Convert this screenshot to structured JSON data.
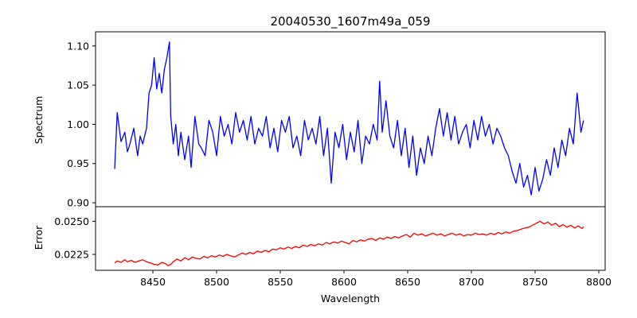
{
  "chart_data": [
    {
      "type": "line",
      "title": "20040530_1607m49a_059",
      "xlabel": "",
      "ylabel": "Spectrum",
      "xlim": [
        8405,
        8805
      ],
      "ylim": [
        0.895,
        1.118
      ],
      "yticks": [
        "0.90",
        "0.95",
        "1.00",
        "1.05",
        "1.10"
      ],
      "xticks_visible": false,
      "series": [
        {
          "color": "#0000ff",
          "x": [
            8420,
            8422,
            8425,
            8428,
            8430,
            8432,
            8435,
            8438,
            8440,
            8442,
            8445,
            8447,
            8449,
            8451,
            8453,
            8455,
            8457,
            8459,
            8461,
            8463,
            8464,
            8466,
            8468,
            8470,
            8472,
            8475,
            8478,
            8480,
            8483,
            8486,
            8488,
            8491,
            8494,
            8497,
            8500,
            8503,
            8506,
            8509,
            8512,
            8515,
            8518,
            8521,
            8524,
            8527,
            8530,
            8533,
            8536,
            8539,
            8542,
            8545,
            8548,
            8551,
            8554,
            8557,
            8560,
            8563,
            8566,
            8569,
            8572,
            8575,
            8578,
            8581,
            8584,
            8587,
            8590,
            8593,
            8596,
            8599,
            8602,
            8605,
            8608,
            8611,
            8614,
            8617,
            8620,
            8623,
            8626,
            8628,
            8630,
            8633,
            8636,
            8639,
            8642,
            8645,
            8648,
            8651,
            8654,
            8657,
            8660,
            8663,
            8666,
            8669,
            8672,
            8675,
            8678,
            8681,
            8684,
            8687,
            8690,
            8693,
            8696,
            8699,
            8702,
            8705,
            8708,
            8711,
            8714,
            8717,
            8720,
            8723,
            8726,
            8729,
            8732,
            8735,
            8738,
            8741,
            8744,
            8747,
            8750,
            8753,
            8756,
            8759,
            8762,
            8765,
            8768,
            8771,
            8774,
            8777,
            8780,
            8783,
            8786,
            8788
          ],
          "y": [
            0.943,
            1.015,
            0.978,
            0.99,
            0.965,
            0.975,
            0.995,
            0.96,
            0.985,
            0.975,
            0.995,
            1.04,
            1.05,
            1.085,
            1.045,
            1.065,
            1.04,
            1.07,
            1.085,
            1.105,
            1.01,
            0.975,
            1.0,
            0.96,
            0.99,
            0.955,
            0.985,
            0.945,
            1.01,
            0.975,
            0.97,
            0.96,
            1.005,
            0.99,
            0.96,
            1.01,
            0.985,
            1.0,
            0.975,
            1.015,
            0.99,
            1.005,
            0.98,
            1.01,
            0.975,
            0.995,
            0.985,
            1.01,
            0.97,
            0.995,
            0.965,
            1.005,
            0.99,
            1.01,
            0.97,
            0.985,
            0.96,
            1.005,
            0.98,
            0.995,
            0.975,
            1.01,
            0.96,
            0.995,
            0.925,
            0.99,
            0.97,
            1.0,
            0.955,
            0.99,
            0.965,
            1.005,
            0.95,
            0.985,
            0.975,
            1.0,
            0.98,
            1.055,
            0.99,
            1.03,
            0.985,
            0.97,
            1.005,
            0.96,
            0.995,
            0.945,
            0.985,
            0.935,
            0.97,
            0.95,
            0.985,
            0.96,
            0.995,
            1.02,
            0.985,
            1.015,
            0.98,
            1.01,
            0.975,
            0.99,
            1.0,
            0.97,
            1.005,
            0.98,
            1.01,
            0.985,
            1.0,
            0.975,
            0.995,
            0.985,
            0.97,
            0.96,
            0.94,
            0.925,
            0.95,
            0.92,
            0.935,
            0.91,
            0.945,
            0.915,
            0.93,
            0.955,
            0.935,
            0.97,
            0.945,
            0.98,
            0.96,
            0.995,
            0.975,
            1.04,
            0.99,
            1.005
          ]
        }
      ]
    },
    {
      "type": "line",
      "title": "",
      "xlabel": "Wavelength",
      "ylabel": "Error",
      "xlim": [
        8405,
        8805
      ],
      "ylim": [
        0.0213,
        0.0261
      ],
      "xticks": [
        "8450",
        "8500",
        "8550",
        "8600",
        "8650",
        "8700",
        "8750",
        "8800"
      ],
      "yticks": [
        "0.0225",
        "0.0250"
      ],
      "series": [
        {
          "color": "#ff0000",
          "x": [
            8420,
            8422,
            8425,
            8428,
            8430,
            8433,
            8436,
            8439,
            8442,
            8445,
            8448,
            8451,
            8454,
            8457,
            8460,
            8462,
            8464,
            8466,
            8469,
            8472,
            8475,
            8478,
            8481,
            8484,
            8487,
            8490,
            8493,
            8496,
            8499,
            8502,
            8505,
            8508,
            8511,
            8514,
            8517,
            8520,
            8523,
            8526,
            8529,
            8532,
            8535,
            8538,
            8541,
            8544,
            8547,
            8550,
            8553,
            8556,
            8559,
            8562,
            8565,
            8568,
            8571,
            8574,
            8577,
            8580,
            8583,
            8586,
            8589,
            8592,
            8595,
            8598,
            8601,
            8604,
            8607,
            8610,
            8613,
            8616,
            8619,
            8622,
            8625,
            8628,
            8631,
            8634,
            8637,
            8640,
            8643,
            8646,
            8649,
            8652,
            8655,
            8658,
            8661,
            8664,
            8667,
            8670,
            8673,
            8676,
            8679,
            8682,
            8685,
            8688,
            8691,
            8694,
            8697,
            8700,
            8703,
            8706,
            8709,
            8712,
            8715,
            8718,
            8721,
            8724,
            8727,
            8730,
            8733,
            8736,
            8739,
            8742,
            8745,
            8748,
            8751,
            8754,
            8757,
            8760,
            8763,
            8766,
            8769,
            8772,
            8775,
            8778,
            8781,
            8784,
            8787,
            8788
          ],
          "y": [
            0.02185,
            0.022,
            0.0219,
            0.0221,
            0.02195,
            0.02205,
            0.0219,
            0.022,
            0.0221,
            0.02195,
            0.02185,
            0.02175,
            0.0217,
            0.0219,
            0.0218,
            0.02165,
            0.02175,
            0.02195,
            0.02215,
            0.022,
            0.02225,
            0.0221,
            0.0223,
            0.0222,
            0.02215,
            0.02235,
            0.02225,
            0.0224,
            0.0223,
            0.02245,
            0.02235,
            0.0225,
            0.0224,
            0.0223,
            0.02245,
            0.0226,
            0.0225,
            0.02265,
            0.02255,
            0.02275,
            0.02265,
            0.0228,
            0.0227,
            0.0229,
            0.02285,
            0.023,
            0.0229,
            0.02305,
            0.02295,
            0.0231,
            0.023,
            0.0232,
            0.0231,
            0.02325,
            0.02315,
            0.0233,
            0.0232,
            0.0234,
            0.0233,
            0.02345,
            0.02335,
            0.0235,
            0.0234,
            0.0233,
            0.02355,
            0.02345,
            0.0236,
            0.0235,
            0.02365,
            0.0237,
            0.02355,
            0.02375,
            0.02365,
            0.0238,
            0.0237,
            0.02385,
            0.02375,
            0.0239,
            0.024,
            0.0238,
            0.0241,
            0.02395,
            0.02405,
            0.0239,
            0.024,
            0.0241,
            0.02395,
            0.02405,
            0.0239,
            0.024,
            0.0241,
            0.02395,
            0.02405,
            0.0239,
            0.024,
            0.02395,
            0.0241,
            0.024,
            0.02405,
            0.02395,
            0.0241,
            0.024,
            0.02415,
            0.02405,
            0.0242,
            0.0241,
            0.02425,
            0.0243,
            0.0244,
            0.0245,
            0.02455,
            0.0247,
            0.02485,
            0.025,
            0.0248,
            0.02495,
            0.0247,
            0.02485,
            0.0246,
            0.02475,
            0.02455,
            0.0247,
            0.0245,
            0.02465,
            0.02445,
            0.0246
          ]
        }
      ]
    }
  ]
}
